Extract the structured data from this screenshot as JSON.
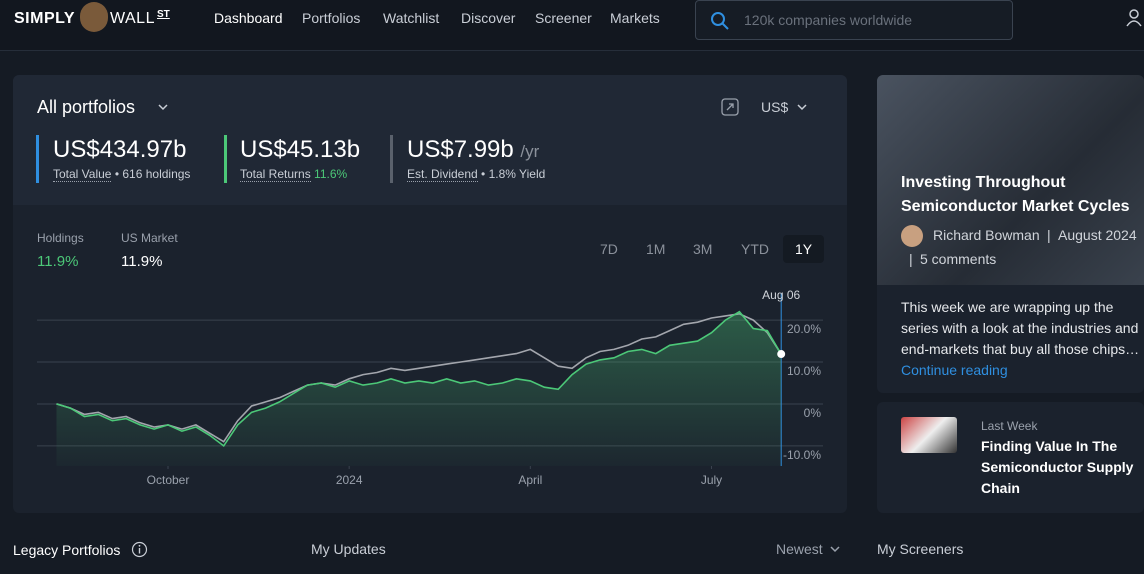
{
  "nav": {
    "logo_left": "SIMPLY",
    "logo_right": "WALL",
    "logo_sup": "ST",
    "items": [
      "Dashboard",
      "Portfolios",
      "Watchlist",
      "Discover",
      "Screener",
      "Markets"
    ],
    "search_placeholder": "120k companies worldwide"
  },
  "portfolio": {
    "title": "All portfolios",
    "currency": "US$",
    "stats": [
      {
        "value": "US$434.97b",
        "label": "Total Value",
        "detail": "• 616 holdings"
      },
      {
        "value": "US$45.13b",
        "label": "Total Returns",
        "detail": "11.6%"
      },
      {
        "value": "US$7.99b",
        "unit": "/yr",
        "label": "Est. Dividend",
        "detail": "• 1.8% Yield"
      }
    ],
    "legend_values": [
      "11.9%",
      "11.9%"
    ],
    "periods": [
      "7D",
      "1M",
      "3M",
      "YTD",
      "1Y"
    ],
    "active_period": "1Y"
  },
  "chart_data": {
    "type": "line",
    "annotation": "Aug 06",
    "x": [
      0,
      1,
      2,
      3,
      4,
      5,
      6,
      7,
      8,
      9,
      10,
      11,
      12,
      13,
      14,
      15,
      16,
      17,
      18,
      19,
      20,
      21,
      22,
      23,
      24,
      25,
      26,
      27,
      28,
      29,
      30,
      31,
      32,
      33,
      34,
      35,
      36,
      37,
      38,
      39,
      40,
      41,
      42,
      43,
      44,
      45,
      46,
      47,
      48,
      49,
      50,
      51,
      52
    ],
    "series": [
      {
        "name": "Holdings",
        "color": "#4cc878",
        "values": [
          0,
          -1,
          -3,
          -2.5,
          -4,
          -3.5,
          -5,
          -6,
          -5,
          -6.5,
          -5.5,
          -7.5,
          -10,
          -5,
          -2,
          -1,
          0.5,
          2.5,
          4.5,
          5,
          4,
          5.5,
          4.5,
          5,
          6,
          5,
          5.5,
          5,
          6,
          5,
          5.5,
          4.5,
          5,
          6,
          5.5,
          4,
          3.5,
          7,
          9.5,
          10.5,
          11,
          12.5,
          13,
          12,
          14,
          14.5,
          15,
          17,
          20,
          22,
          18,
          17.5,
          11.9
        ]
      },
      {
        "name": "US Market",
        "color": "#a3a6ad",
        "values": [
          0,
          -1,
          -2.5,
          -2,
          -3.5,
          -3,
          -4.5,
          -5.5,
          -5,
          -6,
          -5,
          -7,
          -9,
          -4,
          -0.5,
          0.5,
          1.5,
          3,
          4.5,
          5,
          4.5,
          6,
          7,
          7.5,
          8.5,
          8,
          8.5,
          9,
          9.5,
          10,
          10.5,
          11,
          11.5,
          12,
          13,
          11,
          9,
          8.5,
          11,
          12.5,
          13,
          14,
          15.5,
          16,
          17.5,
          19,
          19.5,
          20.5,
          21,
          21.5,
          20,
          17,
          11.9
        ]
      }
    ],
    "xlim": [
      -1.4,
      55
    ],
    "xticks": [
      {
        "value": 8,
        "label": "October"
      },
      {
        "value": 21,
        "label": "2024"
      },
      {
        "value": 34,
        "label": "April"
      },
      {
        "value": 47,
        "label": "July"
      }
    ],
    "ylim": [
      -14.8,
      23.6
    ],
    "yticks": [
      {
        "value": 20,
        "label": "20.0%"
      },
      {
        "value": 10,
        "label": "10.0%"
      },
      {
        "value": 0,
        "label": "0%"
      },
      {
        "value": -10,
        "label": "-10.0%"
      }
    ],
    "grid": true
  },
  "article": {
    "title": "Investing Throughout Semiconductor Market Cycles",
    "author": "Richard Bowman",
    "date": "August 2024",
    "comments": "5 comments",
    "excerpt": "This week we are wrapping up the series with a look at the industries and end-markets that buy all those chips…",
    "link": "Continue reading"
  },
  "last_week": {
    "tag": "Last Week",
    "title": "Finding Value In The Semiconductor Supply Chain"
  },
  "sections": {
    "legacy": "Legacy Portfolios",
    "updates": "My Updates",
    "sort": "Newest",
    "screeners": "My Screeners"
  }
}
